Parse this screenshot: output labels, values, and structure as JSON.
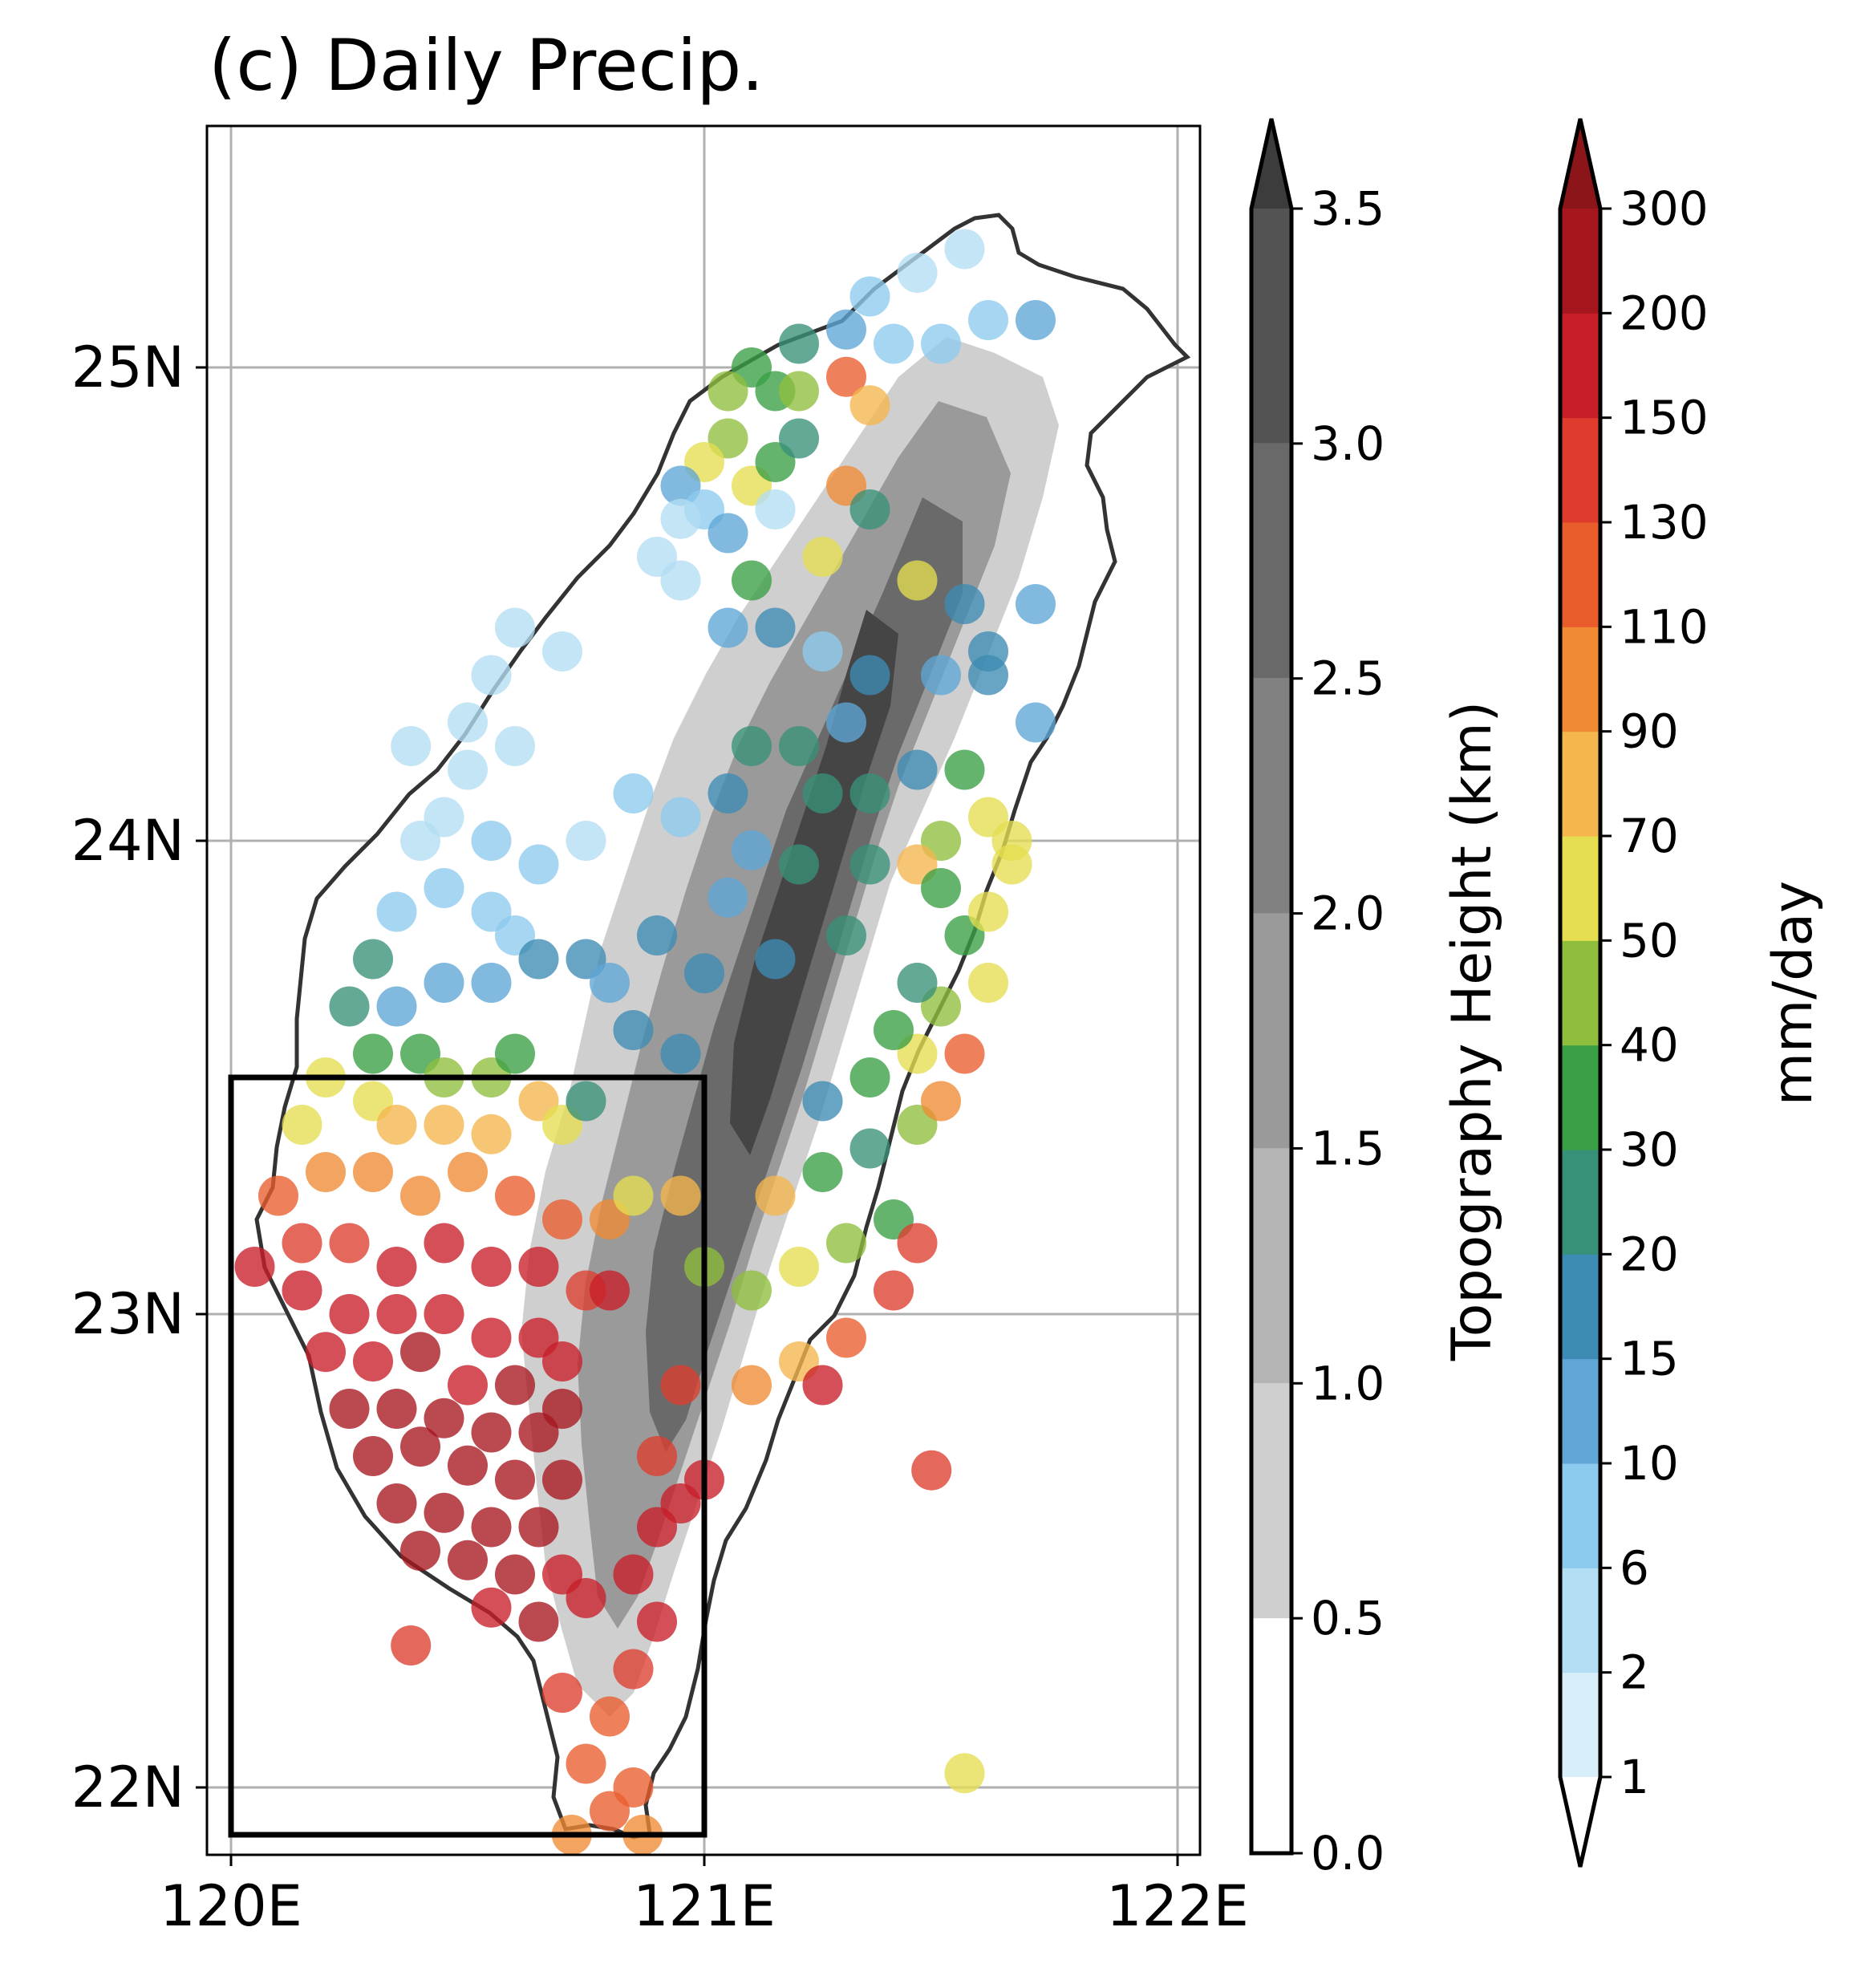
{
  "title": "(c) Daily Precip.",
  "map": {
    "lon_range": [
      119.95,
      122.05
    ],
    "lat_range": [
      21.85,
      25.55
    ],
    "x_ticks": [
      120,
      121,
      122
    ],
    "x_tick_labels": [
      "120E",
      "121E",
      "122E"
    ],
    "y_ticks": [
      22,
      23,
      24,
      25
    ],
    "y_tick_labels": [
      "22N",
      "23N",
      "24N",
      "25N"
    ],
    "grid": true,
    "highlight_box": {
      "lon": [
        120.0,
        121.0
      ],
      "lat": [
        21.9,
        23.5
      ]
    }
  },
  "topo_colorbar": {
    "label": "Topography Height (km)",
    "levels": [
      0.0,
      0.5,
      1.0,
      1.5,
      2.0,
      2.5,
      3.0,
      3.5
    ],
    "tick_labels": [
      "0.0",
      "0.5",
      "1.0",
      "1.5",
      "2.0",
      "2.5",
      "3.0",
      "3.5"
    ],
    "colors": [
      "#ffffff",
      "#cfcfcf",
      "#b4b4b4",
      "#9a9a9a",
      "#818181",
      "#696969",
      "#535353",
      "#3c3c3c"
    ],
    "extend": "max"
  },
  "precip_colorbar": {
    "label": "mm/day",
    "levels": [
      1,
      2,
      6,
      10,
      15,
      20,
      30,
      40,
      50,
      70,
      90,
      110,
      130,
      150,
      200,
      300
    ],
    "tick_labels": [
      "1",
      "2",
      "6",
      "10",
      "15",
      "20",
      "30",
      "40",
      "50",
      "70",
      "90",
      "110",
      "130",
      "150",
      "200",
      "300"
    ],
    "colors": [
      "#d8eef9",
      "#b4def4",
      "#8dcbee",
      "#5fa6d6",
      "#3d8ab2",
      "#389078",
      "#3a9f45",
      "#8fbe3d",
      "#e4de50",
      "#f4b64d",
      "#f08a33",
      "#e95d2d",
      "#de3d2e",
      "#c81e28",
      "#a6161f"
    ],
    "extend": "both"
  },
  "chart_data": {
    "type": "scatter",
    "title": "(c) Daily Precip.",
    "xlabel": "",
    "ylabel": "",
    "xlim": [
      119.95,
      122.05
    ],
    "ylim": [
      21.85,
      25.55
    ],
    "value_unit": "mm/day",
    "points": [
      [
        121.55,
        25.25,
        3
      ],
      [
        121.45,
        25.2,
        5
      ],
      [
        121.35,
        25.15,
        6
      ],
      [
        121.7,
        25.1,
        12
      ],
      [
        121.6,
        25.1,
        8
      ],
      [
        121.5,
        25.05,
        6
      ],
      [
        121.4,
        25.05,
        6
      ],
      [
        121.3,
        25.08,
        12
      ],
      [
        121.2,
        25.05,
        22
      ],
      [
        121.1,
        25.0,
        36
      ],
      [
        121.15,
        24.95,
        32
      ],
      [
        121.2,
        24.95,
        45
      ],
      [
        121.3,
        24.98,
        110
      ],
      [
        121.35,
        24.92,
        85
      ],
      [
        121.05,
        24.95,
        40
      ],
      [
        121.05,
        24.85,
        48
      ],
      [
        121.0,
        24.8,
        55
      ],
      [
        121.1,
        24.75,
        65
      ],
      [
        121.15,
        24.8,
        35
      ],
      [
        121.2,
        24.85,
        28
      ],
      [
        120.95,
        24.75,
        14
      ],
      [
        121.0,
        24.7,
        9
      ],
      [
        121.05,
        24.65,
        13
      ],
      [
        120.95,
        24.68,
        5
      ],
      [
        120.9,
        24.6,
        3
      ],
      [
        120.95,
        24.55,
        2
      ],
      [
        121.15,
        24.7,
        4
      ],
      [
        121.3,
        24.75,
        100
      ],
      [
        121.35,
        24.7,
        25
      ],
      [
        121.25,
        24.6,
        50
      ],
      [
        121.1,
        24.55,
        30
      ],
      [
        121.05,
        24.45,
        12
      ],
      [
        121.15,
        24.45,
        15
      ],
      [
        121.45,
        24.55,
        60
      ],
      [
        121.55,
        24.5,
        18
      ],
      [
        121.7,
        24.5,
        14
      ],
      [
        121.6,
        24.4,
        16
      ],
      [
        121.25,
        24.4,
        8
      ],
      [
        121.35,
        24.35,
        18
      ],
      [
        121.5,
        24.35,
        14
      ],
      [
        121.6,
        24.35,
        16
      ],
      [
        121.7,
        24.25,
        12
      ],
      [
        121.3,
        24.25,
        12
      ],
      [
        121.2,
        24.2,
        24
      ],
      [
        121.1,
        24.2,
        20
      ],
      [
        121.05,
        24.1,
        17
      ],
      [
        121.25,
        24.1,
        22
      ],
      [
        121.35,
        24.1,
        25
      ],
      [
        121.45,
        24.15,
        18
      ],
      [
        121.55,
        24.15,
        35
      ],
      [
        121.6,
        24.05,
        55
      ],
      [
        121.65,
        24.0,
        60
      ],
      [
        121.5,
        24.0,
        40
      ],
      [
        121.45,
        23.95,
        70
      ],
      [
        121.35,
        23.95,
        28
      ],
      [
        121.2,
        23.95,
        25
      ],
      [
        121.1,
        23.98,
        14
      ],
      [
        120.95,
        24.05,
        8
      ],
      [
        120.85,
        24.1,
        6
      ],
      [
        120.75,
        24.0,
        4
      ],
      [
        120.65,
        23.95,
        8
      ],
      [
        120.55,
        24.0,
        7
      ],
      [
        120.45,
        24.05,
        5
      ],
      [
        120.38,
        24.2,
        2
      ],
      [
        120.5,
        24.25,
        3
      ],
      [
        120.55,
        24.35,
        3
      ],
      [
        120.6,
        24.45,
        2
      ],
      [
        120.7,
        24.4,
        3
      ],
      [
        120.6,
        24.2,
        4
      ],
      [
        120.5,
        24.15,
        4
      ],
      [
        120.4,
        24.0,
        5
      ],
      [
        120.45,
        23.9,
        6
      ],
      [
        120.55,
        23.85,
        9
      ],
      [
        120.35,
        23.85,
        8
      ],
      [
        120.3,
        23.75,
        20
      ],
      [
        120.35,
        23.65,
        11
      ],
      [
        120.45,
        23.7,
        10
      ],
      [
        120.55,
        23.7,
        12
      ],
      [
        120.6,
        23.8,
        9
      ],
      [
        120.65,
        23.75,
        15
      ],
      [
        120.75,
        23.75,
        18
      ],
      [
        120.8,
        23.7,
        14
      ],
      [
        120.85,
        23.6,
        18
      ],
      [
        120.95,
        23.55,
        17
      ],
      [
        120.25,
        23.65,
        25
      ],
      [
        120.3,
        23.55,
        30
      ],
      [
        120.4,
        23.55,
        33
      ],
      [
        120.45,
        23.5,
        45
      ],
      [
        120.55,
        23.5,
        40
      ],
      [
        120.6,
        23.55,
        35
      ],
      [
        120.2,
        23.5,
        55
      ],
      [
        120.3,
        23.45,
        50
      ],
      [
        120.35,
        23.4,
        80
      ],
      [
        120.45,
        23.4,
        75
      ],
      [
        120.55,
        23.38,
        70
      ],
      [
        120.65,
        23.45,
        80
      ],
      [
        120.7,
        23.4,
        60
      ],
      [
        120.75,
        23.45,
        28
      ],
      [
        120.15,
        23.4,
        60
      ],
      [
        120.2,
        23.3,
        95
      ],
      [
        120.3,
        23.3,
        100
      ],
      [
        120.4,
        23.25,
        105
      ],
      [
        120.5,
        23.3,
        90
      ],
      [
        120.6,
        23.25,
        115
      ],
      [
        120.7,
        23.2,
        120
      ],
      [
        120.8,
        23.2,
        100
      ],
      [
        120.85,
        23.25,
        65
      ],
      [
        120.95,
        23.25,
        75
      ],
      [
        120.1,
        23.25,
        115
      ],
      [
        120.15,
        23.15,
        140
      ],
      [
        120.25,
        23.15,
        130
      ],
      [
        120.35,
        23.1,
        150
      ],
      [
        120.45,
        23.15,
        160
      ],
      [
        120.55,
        23.1,
        165
      ],
      [
        120.65,
        23.1,
        170
      ],
      [
        120.75,
        23.05,
        140
      ],
      [
        120.8,
        23.05,
        155
      ],
      [
        120.05,
        23.1,
        170
      ],
      [
        120.15,
        23.05,
        160
      ],
      [
        120.25,
        23.0,
        175
      ],
      [
        120.35,
        23.0,
        180
      ],
      [
        120.45,
        23.0,
        175
      ],
      [
        120.55,
        22.95,
        165
      ],
      [
        120.65,
        22.95,
        180
      ],
      [
        120.7,
        22.9,
        190
      ],
      [
        120.2,
        22.92,
        185
      ],
      [
        120.3,
        22.9,
        190
      ],
      [
        120.4,
        22.92,
        200
      ],
      [
        120.5,
        22.85,
        195
      ],
      [
        120.6,
        22.85,
        200
      ],
      [
        120.7,
        22.8,
        220
      ],
      [
        120.25,
        22.8,
        210
      ],
      [
        120.35,
        22.8,
        200
      ],
      [
        120.45,
        22.78,
        220
      ],
      [
        120.55,
        22.75,
        230
      ],
      [
        120.65,
        22.75,
        210
      ],
      [
        120.3,
        22.7,
        230
      ],
      [
        120.4,
        22.72,
        250
      ],
      [
        120.5,
        22.68,
        240
      ],
      [
        120.6,
        22.65,
        230
      ],
      [
        120.7,
        22.65,
        210
      ],
      [
        120.35,
        22.6,
        260
      ],
      [
        120.45,
        22.58,
        220
      ],
      [
        120.55,
        22.55,
        230
      ],
      [
        120.65,
        22.55,
        200
      ],
      [
        120.4,
        22.5,
        200
      ],
      [
        120.5,
        22.48,
        210
      ],
      [
        120.6,
        22.45,
        220
      ],
      [
        120.7,
        22.45,
        180
      ],
      [
        120.55,
        22.38,
        190
      ],
      [
        120.65,
        22.35,
        200
      ],
      [
        120.75,
        22.4,
        180
      ],
      [
        120.85,
        22.45,
        175
      ],
      [
        120.9,
        22.55,
        160
      ],
      [
        120.95,
        22.6,
        150
      ],
      [
        121.0,
        22.65,
        155
      ],
      [
        120.9,
        22.7,
        140
      ],
      [
        120.95,
        22.85,
        140
      ],
      [
        120.9,
        22.35,
        155
      ],
      [
        120.85,
        22.25,
        130
      ],
      [
        120.7,
        22.2,
        135
      ],
      [
        120.8,
        22.15,
        120
      ],
      [
        120.75,
        22.05,
        125
      ],
      [
        120.85,
        22.0,
        115
      ],
      [
        120.8,
        21.95,
        110
      ],
      [
        120.72,
        21.9,
        100
      ],
      [
        120.87,
        21.9,
        100
      ],
      [
        120.38,
        22.3,
        140
      ],
      [
        121.48,
        22.67,
        135
      ],
      [
        121.55,
        22.03,
        55
      ],
      [
        121.0,
        23.1,
        40
      ],
      [
        121.1,
        23.05,
        45
      ],
      [
        121.2,
        23.1,
        60
      ],
      [
        121.3,
        23.15,
        45
      ],
      [
        121.4,
        23.2,
        35
      ],
      [
        121.45,
        23.15,
        145
      ],
      [
        121.4,
        23.05,
        130
      ],
      [
        121.3,
        22.95,
        110
      ],
      [
        121.2,
        22.9,
        85
      ],
      [
        121.1,
        22.85,
        90
      ],
      [
        121.25,
        22.85,
        155
      ],
      [
        121.15,
        23.25,
        70
      ],
      [
        121.25,
        23.3,
        30
      ],
      [
        121.35,
        23.35,
        25
      ],
      [
        121.45,
        23.4,
        42
      ],
      [
        121.5,
        23.45,
        95
      ],
      [
        121.55,
        23.55,
        110
      ],
      [
        121.45,
        23.55,
        50
      ],
      [
        121.35,
        23.5,
        30
      ],
      [
        121.25,
        23.45,
        18
      ],
      [
        121.4,
        23.6,
        35
      ],
      [
        121.5,
        23.65,
        40
      ],
      [
        121.6,
        23.7,
        60
      ],
      [
        121.45,
        23.7,
        28
      ],
      [
        121.55,
        23.8,
        30
      ],
      [
        121.6,
        23.85,
        50
      ],
      [
        121.65,
        23.95,
        65
      ],
      [
        121.5,
        23.9,
        35
      ],
      [
        121.3,
        23.8,
        22
      ],
      [
        121.15,
        23.75,
        18
      ],
      [
        121.0,
        23.72,
        17
      ],
      [
        120.9,
        23.8,
        16
      ],
      [
        121.05,
        23.88,
        14
      ]
    ]
  }
}
